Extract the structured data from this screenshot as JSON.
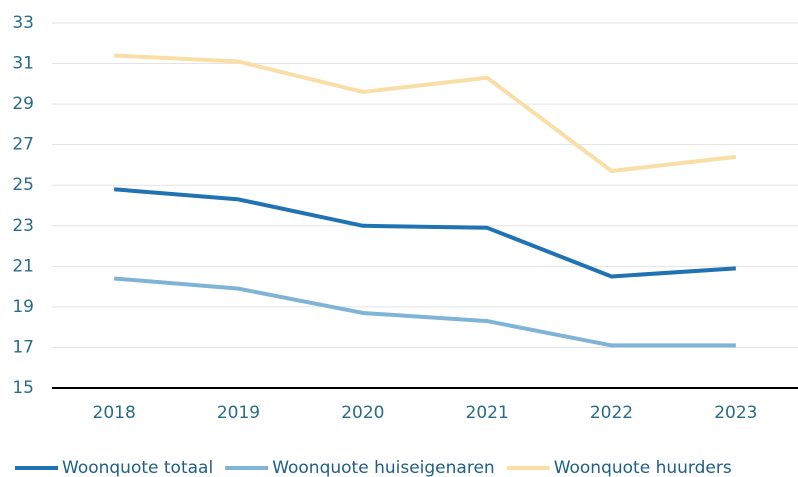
{
  "chart_data": {
    "type": "line",
    "categories": [
      "2018",
      "2019",
      "2020",
      "2021",
      "2022",
      "2023"
    ],
    "series": [
      {
        "name": "Woonquote totaal",
        "color": "#1f73b3",
        "values": [
          24.8,
          24.3,
          23.0,
          22.9,
          20.5,
          20.9
        ]
      },
      {
        "name": "Woonquote huiseigenaren",
        "color": "#7fb4d7",
        "values": [
          20.4,
          19.9,
          18.7,
          18.3,
          17.1,
          17.1
        ]
      },
      {
        "name": "Woonquote huurders",
        "color": "#f9dea6",
        "values": [
          31.4,
          31.1,
          29.6,
          30.3,
          25.7,
          26.4
        ]
      }
    ],
    "ylim": [
      15,
      33
    ],
    "yticks": [
      15,
      17,
      19,
      21,
      23,
      25,
      27,
      29,
      31,
      33
    ],
    "grid": true,
    "legend": "bottom"
  }
}
